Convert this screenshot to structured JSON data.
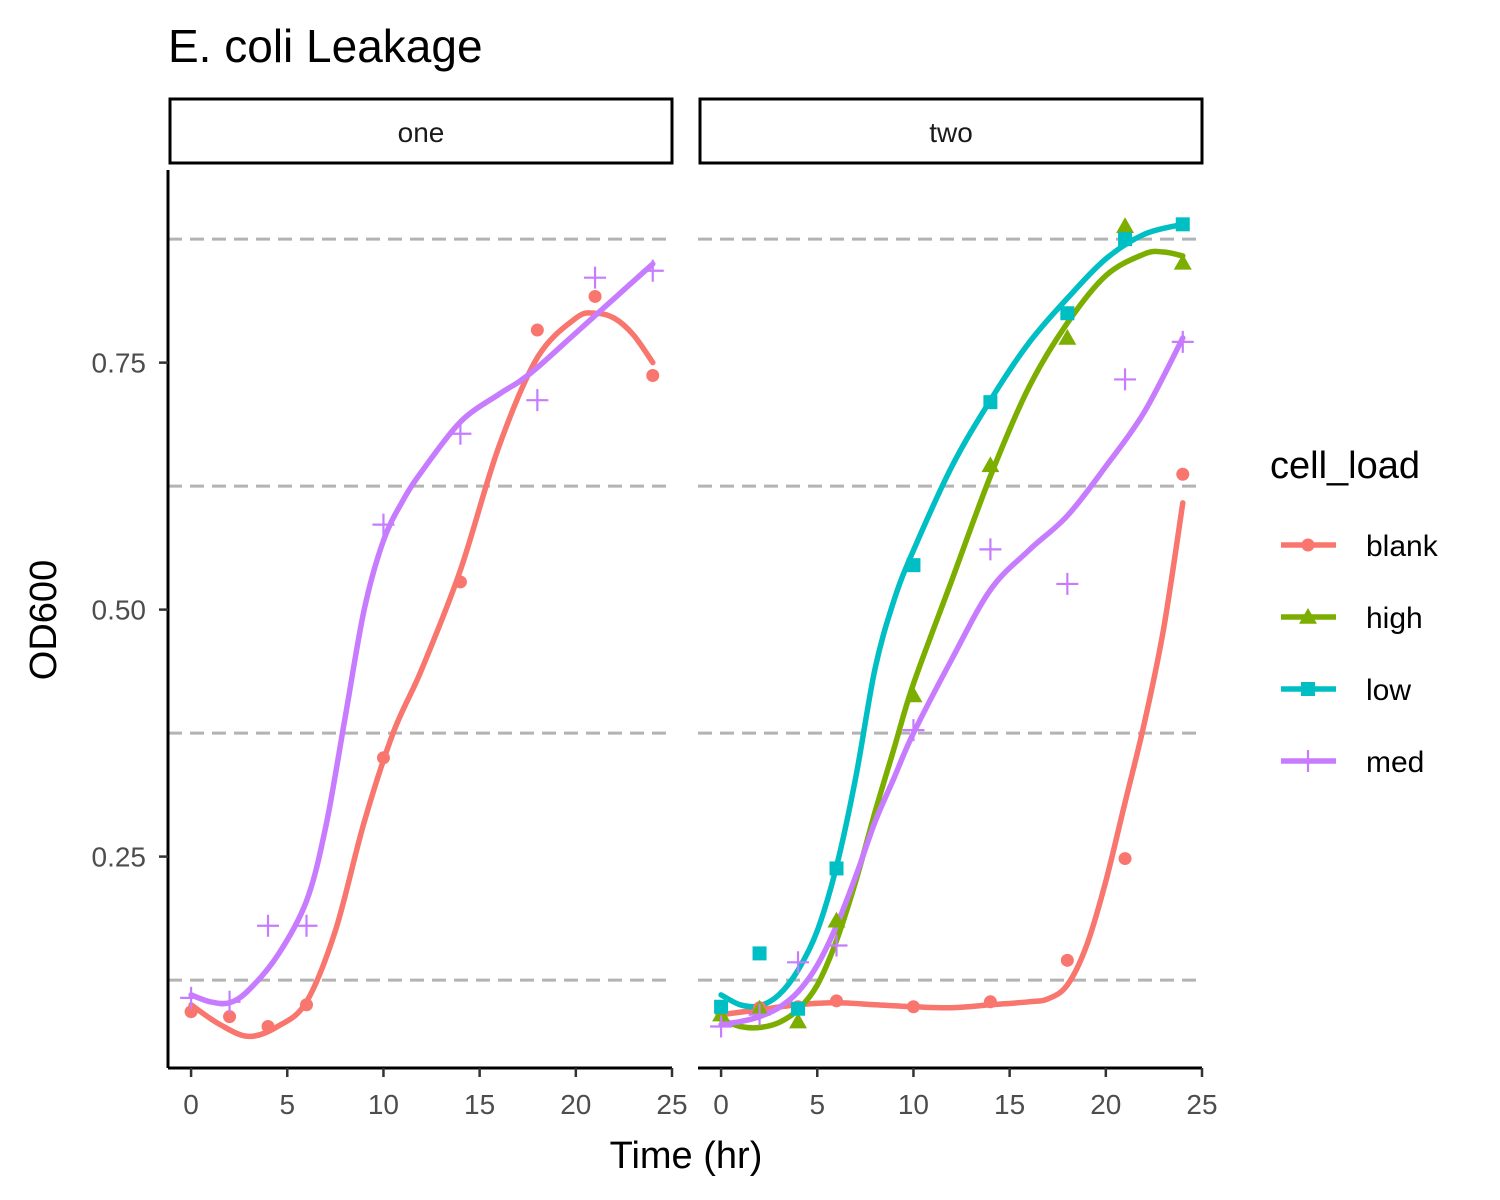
{
  "chart_data": {
    "type": "line",
    "title": "E. coli Leakage",
    "xlabel": "Time (hr)",
    "ylabel": "OD600",
    "xlim": [
      -1.2,
      25
    ],
    "ylim": [
      0.036,
      0.945
    ],
    "x_ticks": [
      0,
      5,
      10,
      15,
      20,
      25
    ],
    "y_ticks": [
      0.25,
      0.5,
      0.75
    ],
    "y_tick_labels": [
      "0.25",
      "0.50",
      "0.75"
    ],
    "hlines": [
      0.125,
      0.375,
      0.625,
      0.875
    ],
    "grid": false,
    "legend": {
      "title": "cell_load",
      "position": "right",
      "entries": [
        {
          "name": "blank",
          "color": "#F8766D",
          "shape": "circle"
        },
        {
          "name": "high",
          "color": "#7CAE00",
          "shape": "triangle"
        },
        {
          "name": "low",
          "color": "#00BFC4",
          "shape": "square"
        },
        {
          "name": "med",
          "color": "#C77CFF",
          "shape": "plus"
        }
      ]
    },
    "panels": [
      {
        "label": "one",
        "series": [
          {
            "name": "blank",
            "points": [
              [
                0,
                0.093
              ],
              [
                2,
                0.088
              ],
              [
                4,
                0.078
              ],
              [
                6,
                0.1
              ],
              [
                10,
                0.35
              ],
              [
                14,
                0.528
              ],
              [
                18,
                0.783
              ],
              [
                21,
                0.817
              ],
              [
                24,
                0.737
              ]
            ],
            "smooth": [
              [
                0,
                0.1
              ],
              [
                1.5,
                0.08
              ],
              [
                3,
                0.068
              ],
              [
                4.5,
                0.078
              ],
              [
                6,
                0.103
              ],
              [
                7.5,
                0.175
              ],
              [
                9,
                0.285
              ],
              [
                10.5,
                0.375
              ],
              [
                12,
                0.44
              ],
              [
                14,
                0.54
              ],
              [
                16,
                0.665
              ],
              [
                18,
                0.755
              ],
              [
                20,
                0.795
              ],
              [
                21,
                0.8
              ],
              [
                22,
                0.795
              ],
              [
                23,
                0.778
              ],
              [
                24,
                0.75
              ]
            ]
          },
          {
            "name": "med",
            "points": [
              [
                0,
                0.107
              ],
              [
                2,
                0.103
              ],
              [
                4,
                0.18
              ],
              [
                6,
                0.18
              ],
              [
                10,
                0.586
              ],
              [
                14,
                0.678
              ],
              [
                18,
                0.712
              ],
              [
                21,
                0.836
              ],
              [
                24,
                0.843
              ]
            ],
            "smooth": [
              [
                0,
                0.11
              ],
              [
                1,
                0.103
              ],
              [
                2,
                0.102
              ],
              [
                3,
                0.115
              ],
              [
                4.5,
                0.15
              ],
              [
                6,
                0.205
              ],
              [
                7,
                0.28
              ],
              [
                8,
                0.39
              ],
              [
                9,
                0.5
              ],
              [
                10,
                0.57
              ],
              [
                11,
                0.61
              ],
              [
                12,
                0.64
              ],
              [
                14,
                0.69
              ],
              [
                16,
                0.718
              ],
              [
                17,
                0.73
              ],
              [
                18,
                0.745
              ],
              [
                20,
                0.78
              ],
              [
                22,
                0.815
              ],
              [
                24,
                0.85
              ]
            ]
          }
        ]
      },
      {
        "label": "two",
        "series": [
          {
            "name": "blank",
            "points": [
              [
                0,
                0.093
              ],
              [
                2,
                0.097
              ],
              [
                4,
                0.098
              ],
              [
                6,
                0.104
              ],
              [
                10,
                0.098
              ],
              [
                14,
                0.103
              ],
              [
                18,
                0.145
              ],
              [
                21,
                0.248
              ],
              [
                24,
                0.637
              ]
            ],
            "smooth": [
              [
                0,
                0.09
              ],
              [
                2,
                0.095
              ],
              [
                4,
                0.1
              ],
              [
                6,
                0.102
              ],
              [
                8,
                0.1
              ],
              [
                10,
                0.098
              ],
              [
                12,
                0.097
              ],
              [
                14,
                0.1
              ],
              [
                16,
                0.103
              ],
              [
                17,
                0.106
              ],
              [
                18,
                0.12
              ],
              [
                19,
                0.16
              ],
              [
                20,
                0.225
              ],
              [
                21,
                0.305
              ],
              [
                22,
                0.385
              ],
              [
                23,
                0.48
              ],
              [
                24,
                0.608
              ]
            ]
          },
          {
            "name": "high",
            "points": [
              [
                0,
                0.09
              ],
              [
                2,
                0.096
              ],
              [
                4,
                0.083
              ],
              [
                6,
                0.185
              ],
              [
                10,
                0.413
              ],
              [
                14,
                0.646
              ],
              [
                18,
                0.775
              ],
              [
                21,
                0.888
              ],
              [
                24,
                0.851
              ]
            ],
            "smooth": [
              [
                0,
                0.085
              ],
              [
                1,
                0.078
              ],
              [
                2,
                0.077
              ],
              [
                3,
                0.082
              ],
              [
                4,
                0.095
              ],
              [
                5,
                0.12
              ],
              [
                6,
                0.165
              ],
              [
                7,
                0.225
              ],
              [
                8,
                0.295
              ],
              [
                9,
                0.36
              ],
              [
                10,
                0.425
              ],
              [
                12,
                0.53
              ],
              [
                14,
                0.635
              ],
              [
                16,
                0.725
              ],
              [
                18,
                0.79
              ],
              [
                20,
                0.838
              ],
              [
                22,
                0.86
              ],
              [
                23,
                0.862
              ],
              [
                24,
                0.858
              ]
            ]
          },
          {
            "name": "low",
            "points": [
              [
                0,
                0.098
              ],
              [
                2,
                0.152
              ],
              [
                4,
                0.096
              ],
              [
                6,
                0.238
              ],
              [
                10,
                0.545
              ],
              [
                14,
                0.71
              ],
              [
                18,
                0.8
              ],
              [
                21,
                0.875
              ],
              [
                24,
                0.89
              ]
            ],
            "smooth": [
              [
                0,
                0.11
              ],
              [
                1,
                0.1
              ],
              [
                2,
                0.099
              ],
              [
                3,
                0.11
              ],
              [
                4,
                0.135
              ],
              [
                5,
                0.175
              ],
              [
                6,
                0.24
              ],
              [
                7,
                0.33
              ],
              [
                8,
                0.44
              ],
              [
                9,
                0.51
              ],
              [
                10,
                0.56
              ],
              [
                12,
                0.645
              ],
              [
                14,
                0.712
              ],
              [
                16,
                0.77
              ],
              [
                18,
                0.815
              ],
              [
                20,
                0.855
              ],
              [
                22,
                0.88
              ],
              [
                24,
                0.89
              ]
            ]
          },
          {
            "name": "med",
            "points": [
              [
                0,
                0.078
              ],
              [
                2,
                0.09
              ],
              [
                4,
                0.143
              ],
              [
                6,
                0.16
              ],
              [
                10,
                0.378
              ],
              [
                14,
                0.561
              ],
              [
                18,
                0.526
              ],
              [
                21,
                0.733
              ],
              [
                24,
                0.771
              ]
            ],
            "smooth": [
              [
                0,
                0.08
              ],
              [
                1,
                0.083
              ],
              [
                2,
                0.088
              ],
              [
                3,
                0.097
              ],
              [
                4,
                0.113
              ],
              [
                5,
                0.14
              ],
              [
                6,
                0.18
              ],
              [
                7,
                0.23
              ],
              [
                8,
                0.285
              ],
              [
                9,
                0.33
              ],
              [
                10,
                0.375
              ],
              [
                12,
                0.45
              ],
              [
                14,
                0.52
              ],
              [
                16,
                0.56
              ],
              [
                18,
                0.595
              ],
              [
                20,
                0.645
              ],
              [
                22,
                0.7
              ],
              [
                24,
                0.775
              ]
            ]
          }
        ]
      }
    ]
  }
}
